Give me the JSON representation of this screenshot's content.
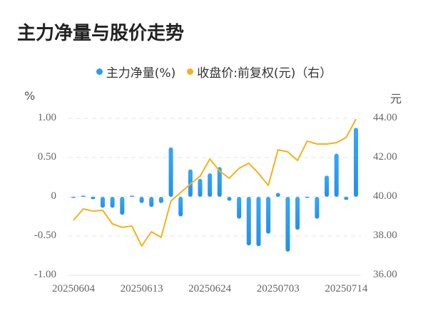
{
  "title": "主力净量与股价走势",
  "legend": [
    {
      "label": "主力净量(%)",
      "color": "#2b9cf0"
    },
    {
      "label": "收盘价:前复权(元)（右）",
      "color": "#f5b21a"
    }
  ],
  "axes": {
    "left_unit": "%",
    "right_unit": "元",
    "left_ticks": [
      "1.00",
      "0.50",
      "0",
      "-0.50",
      "-1.00"
    ],
    "right_ticks": [
      "44.00",
      "42.00",
      "40.00",
      "38.00",
      "36.00"
    ],
    "x_ticks": [
      "20250604",
      "20250613",
      "20250624",
      "20250703",
      "20250714"
    ]
  },
  "chart_data": {
    "type": "bar+line",
    "title": "主力净量与股价走势",
    "xlabel": "",
    "ylabel_left": "%",
    "ylabel_right": "元",
    "ylim_left": [
      -1.0,
      1.0
    ],
    "ylim_right": [
      36.0,
      44.0
    ],
    "grid": true,
    "legend_position": "top",
    "x_tick_labels": [
      "20250604",
      "20250613",
      "20250624",
      "20250703",
      "20250714"
    ],
    "x_tick_indices": [
      0,
      7,
      14,
      21,
      28
    ],
    "series": [
      {
        "name": "主力净量(%)",
        "type": "bar",
        "axis": "left",
        "color": "#2b9cf0",
        "values": [
          -0.01,
          0.0,
          -0.03,
          -0.14,
          -0.14,
          -0.23,
          0.01,
          -0.08,
          -0.13,
          -0.08,
          0.63,
          -0.25,
          0.35,
          0.23,
          0.3,
          0.38,
          -0.05,
          -0.28,
          -0.62,
          -0.63,
          -0.47,
          0.05,
          -0.7,
          -0.42,
          -0.01,
          -0.28,
          0.27,
          0.55,
          -0.04,
          0.88
        ]
      },
      {
        "name": "收盘价:前复权(元)（右）",
        "type": "line",
        "axis": "right",
        "color": "#f5b21a",
        "values": [
          38.8,
          39.38,
          39.27,
          39.31,
          38.62,
          38.44,
          38.51,
          37.49,
          38.22,
          37.93,
          39.78,
          40.22,
          40.65,
          41.05,
          41.93,
          41.31,
          40.95,
          41.45,
          41.71,
          41.2,
          40.58,
          42.4,
          42.29,
          41.85,
          42.84,
          42.69,
          42.69,
          42.76,
          43.02,
          43.96
        ]
      }
    ]
  }
}
